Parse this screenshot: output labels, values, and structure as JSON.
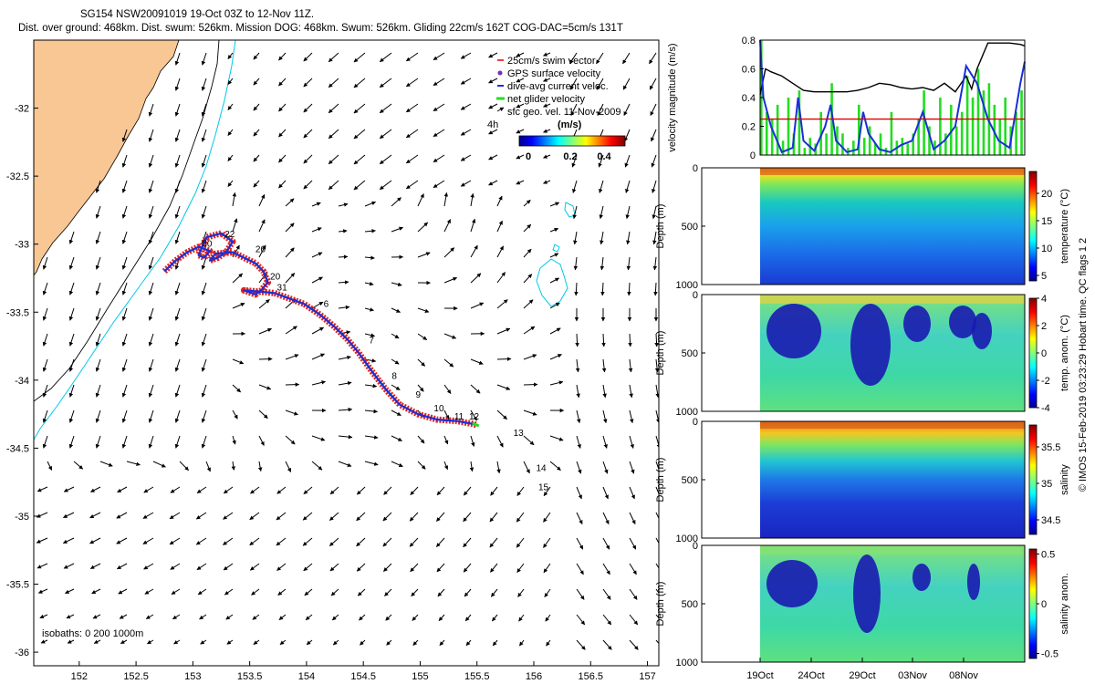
{
  "header": {
    "line1": "SG154 NSW20091019 19-Oct 03Z to 12-Nov 11Z.",
    "line2": "Dist. over ground: 468km. Dist. swum: 526km. Mission DOG: 468km. Swum: 526km. Gliding 22cm/s 162T COG-DAC=5cm/s 131T"
  },
  "colors": {
    "land": "#f8c794",
    "isobath_shelf": "#000000",
    "isobath_deep": "#00c8e6",
    "track_obs": "#e0231c",
    "track_dac": "#1a2fd8",
    "net_velocity": "#22dd22",
    "swim_vector": "#e00000"
  },
  "chart_data": [
    {
      "type": "scatter",
      "name": "glider-track-map",
      "xlim": [
        151.6,
        157.1
      ],
      "ylim": [
        -36.1,
        -31.5
      ],
      "xticks": [
        "152",
        "152.5",
        "153",
        "153.5",
        "154",
        "154.5",
        "155",
        "155.5",
        "156",
        "156.5",
        "157"
      ],
      "yticks": [
        "-32",
        "-32.5",
        "-33",
        "-33.5",
        "-34",
        "-34.5",
        "-35",
        "-35.5",
        "-36"
      ],
      "legend": [
        "25cm/s swim vector",
        "GPS surface velocity",
        "dive-avg current veloc.",
        "net glider velocity",
        "sfc geo. vel. 11-Nov-2009"
      ],
      "colorbar": {
        "title": "(m/s)",
        "label_4h": "4h",
        "ticks": [
          "0",
          "0.2",
          "0.4"
        ],
        "range": [
          0,
          0.5
        ]
      },
      "isobaths_label": "isobaths: 0   200  1000m",
      "track": [
        [
          152.75,
          -33.2
        ],
        [
          152.85,
          -33.12
        ],
        [
          152.95,
          -33.06
        ],
        [
          153.05,
          -33.02
        ],
        [
          153.15,
          -33.05
        ],
        [
          153.1,
          -33.1
        ],
        [
          153.05,
          -33.08
        ],
        [
          153.12,
          -32.95
        ],
        [
          153.25,
          -32.92
        ],
        [
          153.35,
          -32.98
        ],
        [
          153.3,
          -33.05
        ],
        [
          153.22,
          -33.1
        ],
        [
          153.15,
          -33.12
        ],
        [
          153.2,
          -33.07
        ],
        [
          153.35,
          -33.06
        ],
        [
          153.45,
          -33.1
        ],
        [
          153.55,
          -33.14
        ],
        [
          153.62,
          -33.2
        ],
        [
          153.66,
          -33.28
        ],
        [
          153.6,
          -33.34
        ],
        [
          153.55,
          -33.37
        ],
        [
          153.45,
          -33.34
        ],
        [
          153.6,
          -33.35
        ],
        [
          153.72,
          -33.36
        ],
        [
          153.85,
          -33.4
        ],
        [
          153.98,
          -33.44
        ],
        [
          154.12,
          -33.52
        ],
        [
          154.25,
          -33.61
        ],
        [
          154.36,
          -33.7
        ],
        [
          154.46,
          -33.8
        ],
        [
          154.58,
          -33.94
        ],
        [
          154.7,
          -34.07
        ],
        [
          154.82,
          -34.18
        ],
        [
          154.98,
          -34.25
        ],
        [
          155.15,
          -34.29
        ],
        [
          155.32,
          -34.3
        ],
        [
          155.45,
          -34.32
        ],
        [
          155.5,
          -34.33
        ]
      ],
      "day_labels": [
        {
          "t": "22",
          "x": 153.28,
          "y": -32.95
        },
        {
          "t": "26",
          "x": 153.55,
          "y": -33.06
        },
        {
          "t": "30",
          "x": 153.08,
          "y": -33.02
        },
        {
          "t": "20",
          "x": 153.68,
          "y": -33.26
        },
        {
          "t": "31",
          "x": 153.74,
          "y": -33.34
        },
        {
          "t": "6",
          "x": 154.15,
          "y": -33.46
        },
        {
          "t": "7",
          "x": 154.55,
          "y": -33.73
        },
        {
          "t": "8",
          "x": 154.75,
          "y": -33.99
        },
        {
          "t": "9",
          "x": 154.96,
          "y": -34.13
        },
        {
          "t": "10",
          "x": 155.12,
          "y": -34.23
        },
        {
          "t": "11",
          "x": 155.3,
          "y": -34.29
        },
        {
          "t": "12",
          "x": 155.43,
          "y": -34.29
        },
        {
          "t": "13",
          "x": 155.82,
          "y": -34.41
        },
        {
          "t": "14",
          "x": 156.02,
          "y": -34.67
        },
        {
          "t": "15",
          "x": 156.04,
          "y": -34.81
        }
      ]
    },
    {
      "type": "line",
      "name": "velocity-magnitude",
      "ylabel": "velocity magnitude (m/s)",
      "ylim": [
        0,
        0.8
      ],
      "yticks": [
        "0",
        "0.2",
        "0.4",
        "0.6",
        "0.8"
      ],
      "xlim": [
        0,
        24.4
      ],
      "series": [
        {
          "name": "black",
          "x": [
            0,
            0.5,
            1,
            2,
            3,
            4,
            5,
            6,
            7,
            8,
            9,
            10,
            11,
            12,
            13,
            14,
            15,
            16,
            17,
            18,
            19,
            19.5,
            20,
            21,
            22,
            23,
            24,
            24.4
          ],
          "values": [
            0.42,
            0.6,
            0.58,
            0.55,
            0.5,
            0.45,
            0.44,
            0.44,
            0.44,
            0.44,
            0.45,
            0.47,
            0.5,
            0.49,
            0.47,
            0.46,
            0.47,
            0.45,
            0.5,
            0.44,
            0.55,
            0.46,
            0.6,
            0.78,
            0.78,
            0.78,
            0.77,
            0.76
          ]
        },
        {
          "name": "blue",
          "x": [
            0,
            0.3,
            1,
            2,
            3,
            3.5,
            4,
            5,
            6,
            6.5,
            7,
            8,
            9,
            9.5,
            10,
            11,
            12,
            13,
            14,
            15,
            16,
            17,
            18,
            19,
            20,
            21,
            22,
            23,
            24,
            24.4
          ],
          "values": [
            0.8,
            0.4,
            0.2,
            0.02,
            0.05,
            0.4,
            0.1,
            0.03,
            0.2,
            0.35,
            0.1,
            0.02,
            0.04,
            0.3,
            0.15,
            0.04,
            0.02,
            0.07,
            0.1,
            0.3,
            0.04,
            0.1,
            0.2,
            0.62,
            0.5,
            0.25,
            0.1,
            0.05,
            0.5,
            0.65
          ]
        },
        {
          "name": "red",
          "x": [
            0,
            24.4
          ],
          "values": [
            0.25,
            0.25
          ]
        }
      ],
      "green_bars": [
        [
          0,
          0.8
        ],
        [
          0.5,
          0.3
        ],
        [
          1,
          0.25
        ],
        [
          1.5,
          0.35
        ],
        [
          2,
          0.1
        ],
        [
          2.5,
          0.4
        ],
        [
          3,
          0.15
        ],
        [
          3.5,
          0.45
        ],
        [
          4,
          0.05
        ],
        [
          4.5,
          0.12
        ],
        [
          5,
          0.08
        ],
        [
          5.5,
          0.3
        ],
        [
          6,
          0.15
        ],
        [
          6.5,
          0.5
        ],
        [
          7,
          0.2
        ],
        [
          7.5,
          0.15
        ],
        [
          8,
          0.05
        ],
        [
          8.5,
          0.1
        ],
        [
          9,
          0.35
        ],
        [
          9.5,
          0.12
        ],
        [
          10,
          0.2
        ],
        [
          10.5,
          0.08
        ],
        [
          11,
          0.15
        ],
        [
          11.5,
          0.05
        ],
        [
          12,
          0.3
        ],
        [
          12.5,
          0.1
        ],
        [
          13,
          0.12
        ],
        [
          13.5,
          0.08
        ],
        [
          14,
          0.15
        ],
        [
          14.5,
          0.25
        ],
        [
          15,
          0.45
        ],
        [
          15.5,
          0.2
        ],
        [
          16,
          0.1
        ],
        [
          16.5,
          0.4
        ],
        [
          17,
          0.15
        ],
        [
          17.5,
          0.35
        ],
        [
          18,
          0.2
        ],
        [
          18.5,
          0.3
        ],
        [
          19,
          0.55
        ],
        [
          19.5,
          0.4
        ],
        [
          20,
          0.6
        ],
        [
          20.5,
          0.45
        ],
        [
          21,
          0.5
        ],
        [
          21.5,
          0.35
        ],
        [
          22,
          0.25
        ],
        [
          22.5,
          0.4
        ],
        [
          23,
          0.2
        ],
        [
          23.5,
          0.3
        ],
        [
          24,
          0.45
        ]
      ]
    },
    {
      "type": "heatmap",
      "name": "temperature",
      "ylabel": "Depth (m)",
      "colorbar_label": "temperature (°C)",
      "ticks": [
        "20",
        "15",
        "10",
        "5"
      ],
      "yticks": [
        "0",
        "500",
        "1000"
      ],
      "range": [
        4,
        24
      ]
    },
    {
      "type": "heatmap",
      "name": "temp-anomaly",
      "ylabel": "Depth (m)",
      "colorbar_label": "temp. anom. (°C)",
      "ticks": [
        "4",
        "2",
        "0",
        "-2",
        "-4"
      ],
      "yticks": [
        "0",
        "500",
        "1000"
      ],
      "range": [
        -4,
        4
      ]
    },
    {
      "type": "heatmap",
      "name": "salinity",
      "ylabel": "Depth (m)",
      "colorbar_label": "salinity",
      "ticks": [
        "35.5",
        "35",
        "34.5"
      ],
      "yticks": [
        "0",
        "500",
        "1000"
      ],
      "range": [
        34.3,
        35.8
      ]
    },
    {
      "type": "heatmap",
      "name": "salinity-anomaly",
      "ylabel": "Depth (m)",
      "colorbar_label": "salinity anom.",
      "ticks": [
        "0.5",
        "0",
        "-0.5"
      ],
      "yticks": [
        "0",
        "500",
        "1000"
      ],
      "range": [
        -0.55,
        0.55
      ],
      "xticks": [
        "19Oct",
        "24Oct",
        "29Oct",
        "03Nov",
        "08Nov"
      ]
    }
  ],
  "side_note": "© IMOS 15-Feb-2019 03:23:29 Hobart time. QC flags 1  2"
}
